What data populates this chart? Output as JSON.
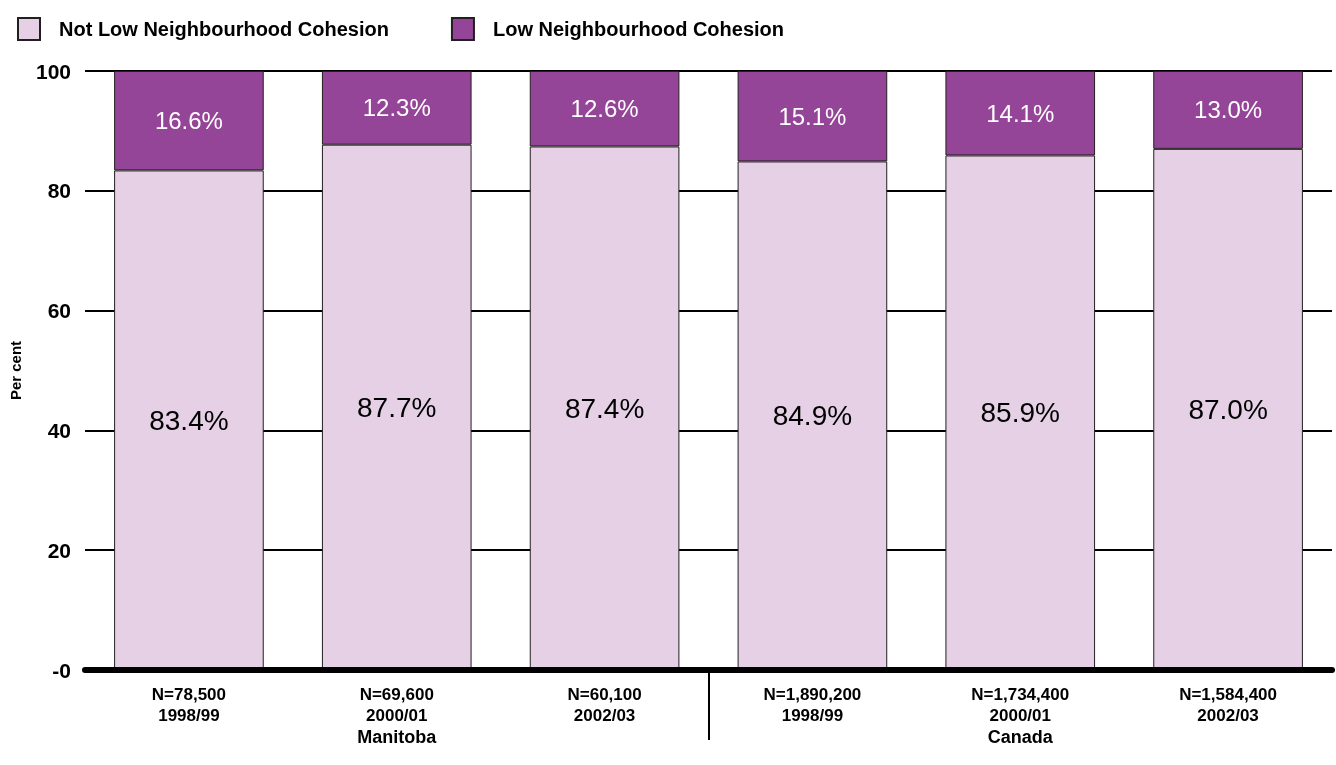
{
  "chart_data": {
    "type": "bar",
    "stacked": true,
    "ylabel": "Per cent",
    "categories": [
      "N=78,500\n1998/99",
      "N=69,600\n2000/01",
      "N=60,100\n2002/03",
      "N=1,890,200\n1998/99",
      "N=1,734,400\n2000/01",
      "N=1,584,400\n2002/03"
    ],
    "series": [
      {
        "name": "Not Low Neighbourhood Cohesion",
        "color": "#e5d0e6",
        "values": [
          83.4,
          87.7,
          87.4,
          84.9,
          85.9,
          87.0
        ],
        "value_labels": [
          "83.4%",
          "87.7%",
          "87.4%",
          "84.9%",
          "85.9%",
          "87.0%"
        ]
      },
      {
        "name": "Low Neighbourhood Cohesion",
        "color": "#944597",
        "values": [
          16.6,
          12.3,
          12.6,
          15.1,
          14.1,
          13.0
        ],
        "value_labels": [
          "16.6%",
          "12.3%",
          "12.6%",
          "15.1%",
          "14.1%",
          "13.0%"
        ]
      }
    ],
    "ylim": [
      0,
      100
    ],
    "yticks": [
      {
        "value": 0,
        "label": "-0"
      },
      20,
      40,
      60,
      80,
      100
    ],
    "grid": "y",
    "legend": "top left",
    "annotations": [
      "Manitoba",
      "Canada"
    ]
  }
}
